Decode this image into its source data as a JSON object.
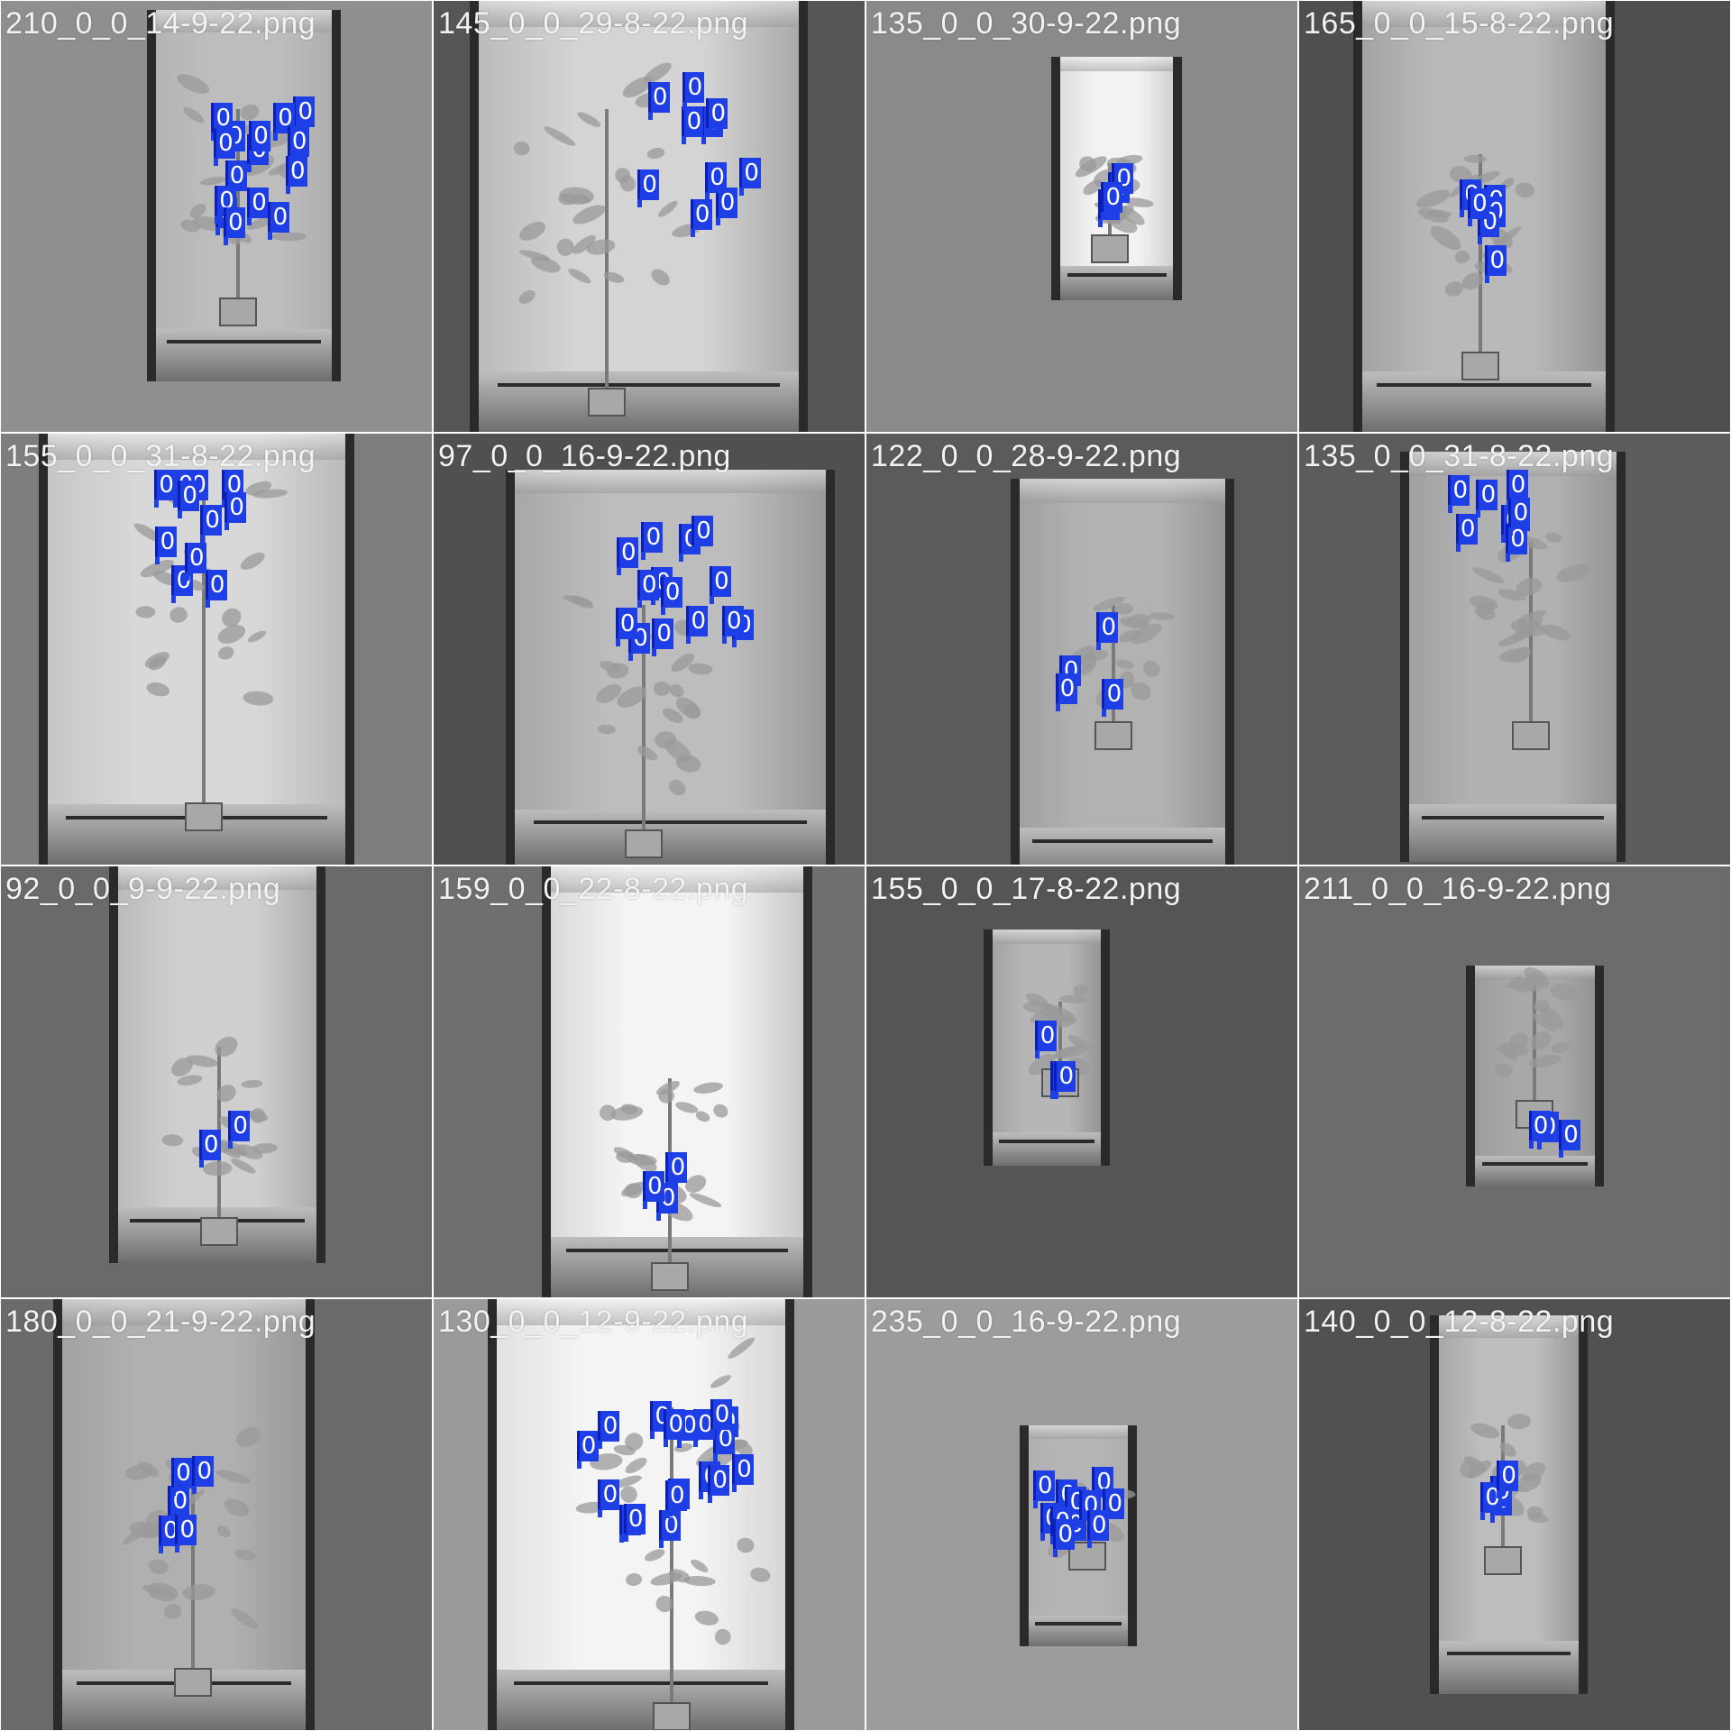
{
  "mosaic": {
    "tiles": [
      {
        "filename": "210_0_0_14-9-22.png",
        "bg": "#8f8f8f",
        "wall": "#bdbdbd",
        "detections": 15
      },
      {
        "filename": "145_0_0_29-8-22.png",
        "bg": "#565656",
        "wall": "#d4d4d4",
        "detections": 10
      },
      {
        "filename": "135_0_0_30-9-22.png",
        "bg": "#8a8a8a",
        "wall": "#f2f2f2",
        "detections": 4
      },
      {
        "filename": "165_0_0_15-8-22.png",
        "bg": "#4f4f4f",
        "wall": "#b9b9b9",
        "detections": 6
      },
      {
        "filename": "155_0_0_31-8-22.png",
        "bg": "#7e7e7e",
        "wall": "#d8d8d8",
        "detections": 11
      },
      {
        "filename": "97_0_0_16-9-22.png",
        "bg": "#505050",
        "wall": "#bdbdbd",
        "detections": 15
      },
      {
        "filename": "122_0_0_28-9-22.png",
        "bg": "#5b5b5b",
        "wall": "#b2b2b2",
        "detections": 4
      },
      {
        "filename": "135_0_0_31-8-22.png",
        "bg": "#5c5c5c",
        "wall": "#b1b1b1",
        "detections": 8
      },
      {
        "filename": "92_0_0_9-9-22.png",
        "bg": "#6a6a6a",
        "wall": "#cfcfcf",
        "detections": 2
      },
      {
        "filename": "159_0_0_22-8-22.png",
        "bg": "#6f6f6f",
        "wall": "#f4f4f4",
        "detections": 3
      },
      {
        "filename": "155_0_0_17-8-22.png",
        "bg": "#555555",
        "wall": "#b6b6b6",
        "detections": 3
      },
      {
        "filename": "211_0_0_16-9-22.png",
        "bg": "#6c6c6c",
        "wall": "#a8a8a8",
        "detections": 3
      },
      {
        "filename": "180_0_0_21-9-22.png",
        "bg": "#6b6b6b",
        "wall": "#b0b0b0",
        "detections": 5
      },
      {
        "filename": "130_0_0_12-9-22.png",
        "bg": "#9a9a9a",
        "wall": "#f4f4f4",
        "detections": 18
      },
      {
        "filename": "235_0_0_16-9-22.png",
        "bg": "#9c9c9c",
        "wall": "#b5b5b5",
        "detections": 12
      },
      {
        "filename": "140_0_0_12-8-22.png",
        "bg": "#515151",
        "wall": "#bdbdbd",
        "detections": 4
      }
    ]
  },
  "detection_label": "0",
  "detection_color": "#1f3fe6",
  "label_color": "#f2f2f2"
}
